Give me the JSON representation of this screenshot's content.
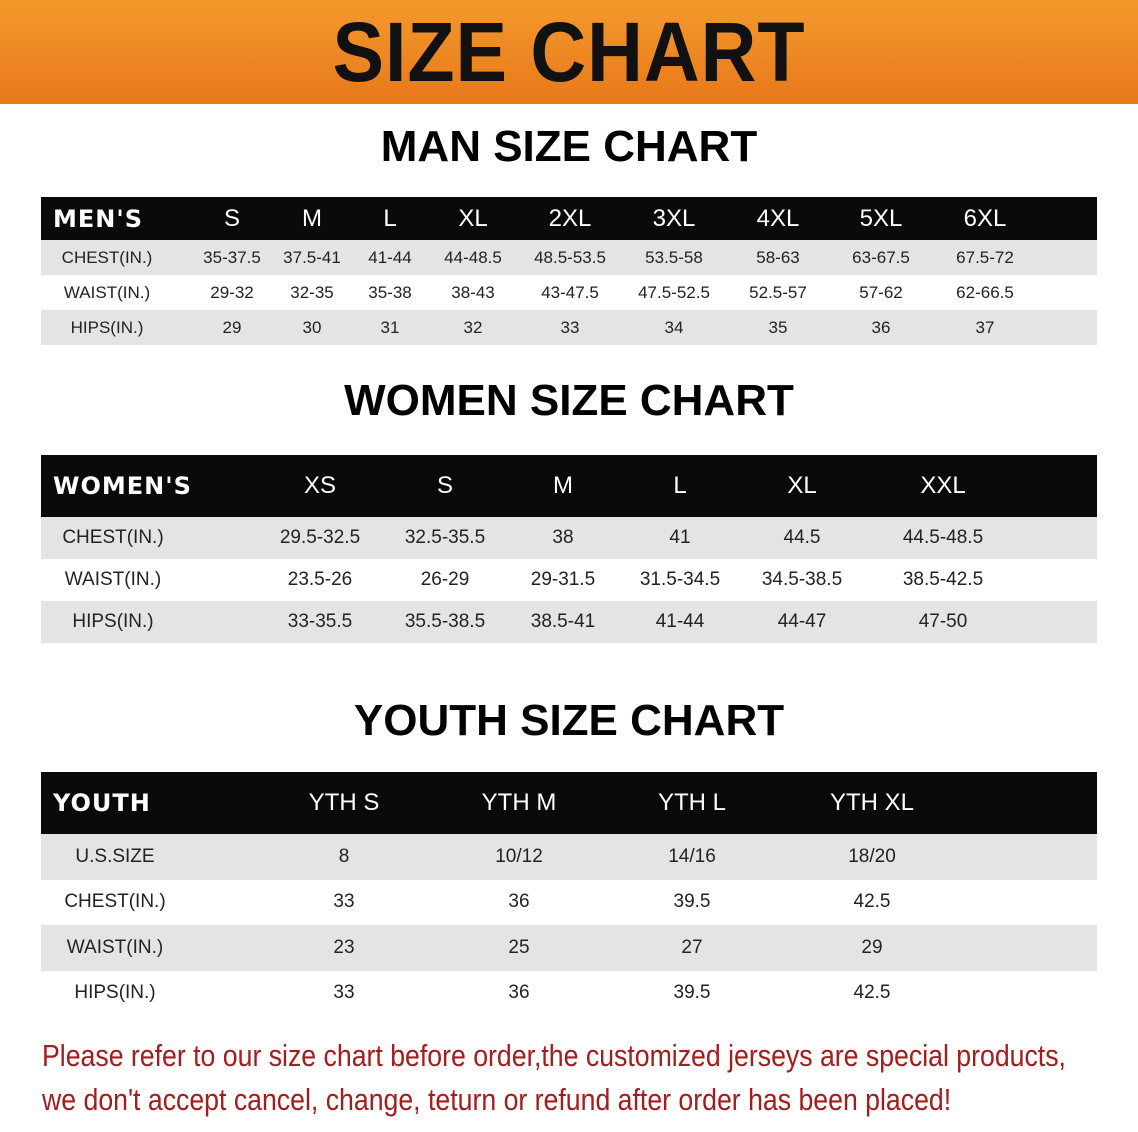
{
  "banner": {
    "title": "SIZE CHART",
    "color": "#ee8420"
  },
  "men": {
    "title": "MAN SIZE CHART",
    "header": [
      "MEN'S",
      "S",
      "M",
      "L",
      "XL",
      "2XL",
      "3XL",
      "4XL",
      "5XL",
      "6XL"
    ],
    "rows": [
      [
        "CHEST(IN.)",
        "35-37.5",
        "37.5-41",
        "41-44",
        "44-48.5",
        "48.5-53.5",
        "53.5-58",
        "58-63",
        "63-67.5",
        "67.5-72"
      ],
      [
        "WAIST(IN.)",
        "29-32",
        "32-35",
        "35-38",
        "38-43",
        "43-47.5",
        "47.5-52.5",
        "52.5-57",
        "57-62",
        "62-66.5"
      ],
      [
        "HIPS(IN.)",
        "29",
        "30",
        "31",
        "32",
        "33",
        "34",
        "35",
        "36",
        "37"
      ]
    ]
  },
  "women": {
    "title": "WOMEN SIZE CHART",
    "header": [
      "WOMEN'S",
      "XS",
      "S",
      "M",
      "L",
      "XL",
      "XXL"
    ],
    "rows": [
      [
        "CHEST(IN.)",
        "29.5-32.5",
        "32.5-35.5",
        "38",
        "41",
        "44.5",
        "44.5-48.5"
      ],
      [
        "WAIST(IN.)",
        "23.5-26",
        "26-29",
        "29-31.5",
        "31.5-34.5",
        "34.5-38.5",
        "38.5-42.5"
      ],
      [
        "HIPS(IN.)",
        "33-35.5",
        "35.5-38.5",
        "38.5-41",
        "41-44",
        "44-47",
        "47-50"
      ]
    ]
  },
  "youth": {
    "title": "YOUTH SIZE CHART",
    "header": [
      "YOUTH",
      "YTH S",
      "YTH M",
      "YTH L",
      "YTH XL"
    ],
    "rows": [
      [
        "U.S.SIZE",
        "8",
        "10/12",
        "14/16",
        "18/20"
      ],
      [
        "CHEST(IN.)",
        "33",
        "36",
        "39.5",
        "42.5"
      ],
      [
        "WAIST(IN.)",
        "23",
        "25",
        "27",
        "29"
      ],
      [
        "HIPS(IN.)",
        "33",
        "36",
        "39.5",
        "42.5"
      ]
    ]
  },
  "notice": {
    "line1": "Please refer to our size chart before order,the customized jerseys are special products,",
    "line2": "we don't accept cancel, change, teturn or refund after order has been placed!",
    "color": "#a51c1c"
  }
}
